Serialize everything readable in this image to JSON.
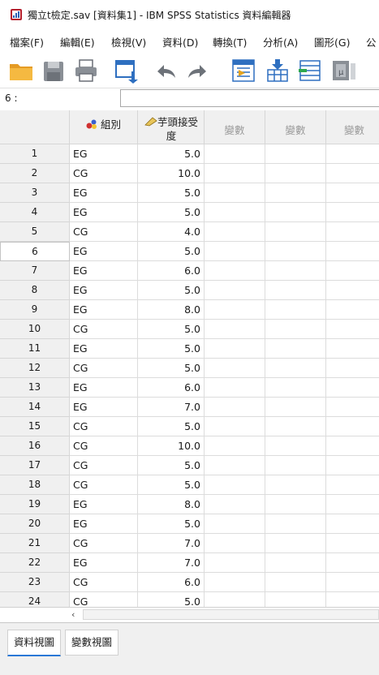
{
  "window": {
    "title": "獨立t檢定.sav [資料集1] - IBM SPSS Statistics 資料編輯器",
    "app_icon": "spss-icon"
  },
  "menu": {
    "items": [
      {
        "label": "檔案(F)"
      },
      {
        "label": "編輯(E)"
      },
      {
        "label": "檢視(V)"
      },
      {
        "label": "資料(D)"
      },
      {
        "label": "轉換(T)"
      },
      {
        "label": "分析(A)"
      },
      {
        "label": "圖形(G)"
      },
      {
        "label": "公"
      }
    ]
  },
  "toolbar": {
    "icons": [
      "open-folder-icon",
      "save-icon",
      "print-icon",
      "recall-dialog-icon",
      "undo-icon",
      "redo-icon",
      "goto-case-icon",
      "goto-variable-icon",
      "variables-icon",
      "run-descriptive-icon"
    ]
  },
  "cell_editor": {
    "cell_ref": "6 :",
    "value": ""
  },
  "grid": {
    "columns": [
      {
        "label": "組別",
        "icon": "nominal-measure-icon"
      },
      {
        "label": "芋頭接受度",
        "icon": "scale-measure-icon"
      },
      {
        "label": "變數"
      },
      {
        "label": "變數"
      },
      {
        "label": "變數"
      }
    ],
    "selected_row": 6,
    "rows": [
      {
        "n": "1",
        "group": "EG",
        "score": "5.0"
      },
      {
        "n": "2",
        "group": "CG",
        "score": "10.0"
      },
      {
        "n": "3",
        "group": "EG",
        "score": "5.0"
      },
      {
        "n": "4",
        "group": "EG",
        "score": "5.0"
      },
      {
        "n": "5",
        "group": "CG",
        "score": "4.0"
      },
      {
        "n": "6",
        "group": "EG",
        "score": "5.0"
      },
      {
        "n": "7",
        "group": "EG",
        "score": "6.0"
      },
      {
        "n": "8",
        "group": "EG",
        "score": "5.0"
      },
      {
        "n": "9",
        "group": "EG",
        "score": "8.0"
      },
      {
        "n": "10",
        "group": "CG",
        "score": "5.0"
      },
      {
        "n": "11",
        "group": "EG",
        "score": "5.0"
      },
      {
        "n": "12",
        "group": "CG",
        "score": "5.0"
      },
      {
        "n": "13",
        "group": "EG",
        "score": "6.0"
      },
      {
        "n": "14",
        "group": "EG",
        "score": "7.0"
      },
      {
        "n": "15",
        "group": "CG",
        "score": "5.0"
      },
      {
        "n": "16",
        "group": "CG",
        "score": "10.0"
      },
      {
        "n": "17",
        "group": "CG",
        "score": "5.0"
      },
      {
        "n": "18",
        "group": "CG",
        "score": "5.0"
      },
      {
        "n": "19",
        "group": "EG",
        "score": "8.0"
      },
      {
        "n": "20",
        "group": "EG",
        "score": "5.0"
      },
      {
        "n": "21",
        "group": "CG",
        "score": "7.0"
      },
      {
        "n": "22",
        "group": "EG",
        "score": "7.0"
      },
      {
        "n": "23",
        "group": "CG",
        "score": "6.0"
      },
      {
        "n": "24",
        "group": "CG",
        "score": "5.0"
      }
    ]
  },
  "tabs": {
    "data_view": "資料視圖",
    "variable_view": "變數視圖"
  }
}
